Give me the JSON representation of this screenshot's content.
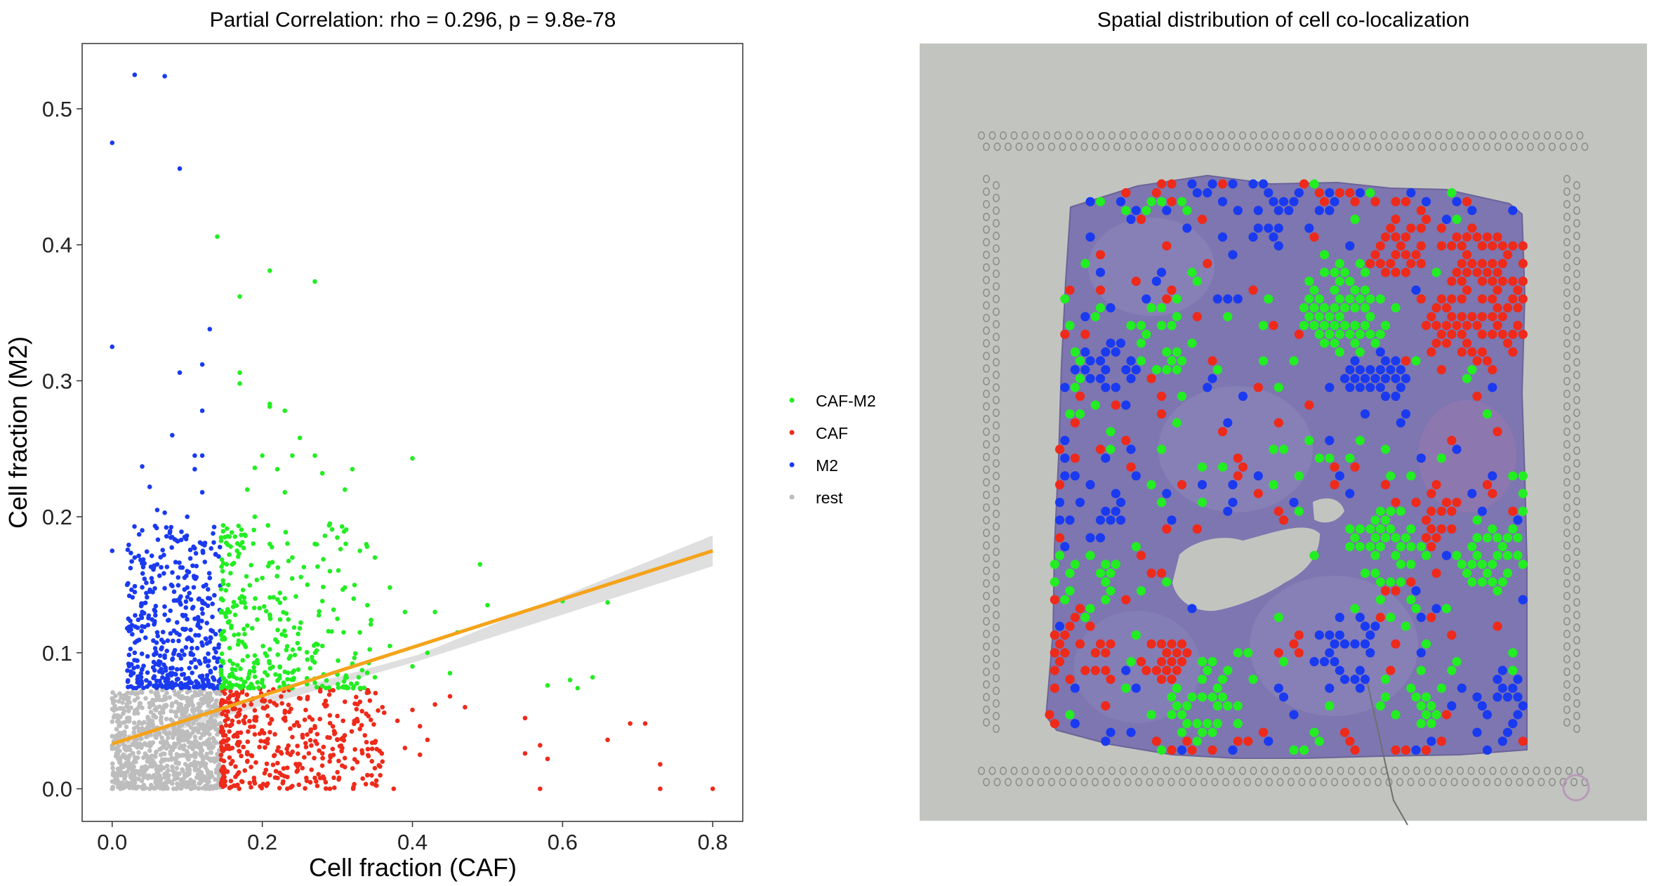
{
  "chart_data": [
    {
      "type": "scatter",
      "title": "Partial Correlation: rho = 0.296, p = 9.8e-78",
      "xlabel": "Cell fraction (CAF)",
      "ylabel": "Cell fraction (M2)",
      "xlim": [
        -0.04,
        0.84
      ],
      "ylim": [
        -0.024,
        0.548
      ],
      "x_ticks": [
        "0.0",
        "0.2",
        "0.4",
        "0.6",
        "0.8"
      ],
      "y_ticks": [
        "0.0",
        "0.1",
        "0.2",
        "0.3",
        "0.4",
        "0.5"
      ],
      "grid": false,
      "legend_position": "right",
      "legend": [
        {
          "label": "CAF-M2",
          "color": "#22ee22"
        },
        {
          "label": "CAF",
          "color": "#ee2a1a"
        },
        {
          "label": "M2",
          "color": "#1a3af0"
        },
        {
          "label": "rest",
          "color": "#bdbdbd"
        }
      ],
      "series": [
        {
          "name": "CAF-M2",
          "color": "#22ee22",
          "points": [
            [
              0.14,
              0.406
            ],
            [
              0.21,
              0.381
            ],
            [
              0.27,
              0.373
            ],
            [
              0.17,
              0.362
            ],
            [
              0.17,
              0.306
            ],
            [
              0.17,
              0.298
            ],
            [
              0.21,
              0.283
            ],
            [
              0.21,
              0.281
            ],
            [
              0.23,
              0.278
            ],
            [
              0.25,
              0.258
            ],
            [
              0.2,
              0.245
            ],
            [
              0.24,
              0.245
            ],
            [
              0.27,
              0.245
            ],
            [
              0.19,
              0.236
            ],
            [
              0.22,
              0.235
            ],
            [
              0.32,
              0.235
            ],
            [
              0.4,
              0.243
            ],
            [
              0.28,
              0.232
            ],
            [
              0.18,
              0.22
            ],
            [
              0.23,
              0.218
            ],
            [
              0.31,
              0.22
            ],
            [
              0.19,
              0.2
            ],
            [
              0.29,
              0.195
            ],
            [
              0.15,
              0.185
            ],
            [
              0.21,
              0.18
            ],
            [
              0.27,
              0.18
            ],
            [
              0.33,
              0.175
            ],
            [
              0.24,
              0.17
            ],
            [
              0.35,
              0.17
            ],
            [
              0.16,
              0.165
            ],
            [
              0.29,
              0.16
            ],
            [
              0.49,
              0.165
            ],
            [
              0.2,
              0.155
            ],
            [
              0.26,
              0.15
            ],
            [
              0.31,
              0.148
            ],
            [
              0.37,
              0.148
            ],
            [
              0.17,
              0.14
            ],
            [
              0.23,
              0.14
            ],
            [
              0.28,
              0.138
            ],
            [
              0.34,
              0.135
            ],
            [
              0.21,
              0.128
            ],
            [
              0.3,
              0.125
            ],
            [
              0.39,
              0.13
            ],
            [
              0.43,
              0.13
            ],
            [
              0.5,
              0.135
            ],
            [
              0.6,
              0.138
            ],
            [
              0.66,
              0.137
            ],
            [
              0.18,
              0.12
            ],
            [
              0.25,
              0.118
            ],
            [
              0.33,
              0.115
            ],
            [
              0.46,
              0.115
            ],
            [
              0.15,
              0.11
            ],
            [
              0.22,
              0.108
            ],
            [
              0.28,
              0.105
            ],
            [
              0.37,
              0.105
            ],
            [
              0.42,
              0.1
            ],
            [
              0.19,
              0.098
            ],
            [
              0.26,
              0.095
            ],
            [
              0.32,
              0.092
            ],
            [
              0.4,
              0.09
            ],
            [
              0.16,
              0.088
            ],
            [
              0.23,
              0.086
            ],
            [
              0.3,
              0.084
            ],
            [
              0.35,
              0.082
            ],
            [
              0.45,
              0.085
            ],
            [
              0.2,
              0.08
            ],
            [
              0.27,
              0.078
            ],
            [
              0.58,
              0.076
            ],
            [
              0.61,
              0.08
            ],
            [
              0.64,
              0.082
            ],
            [
              0.17,
              0.075
            ],
            [
              0.24,
              0.074
            ],
            [
              0.33,
              0.074
            ],
            [
              0.62,
              0.074
            ]
          ]
        },
        {
          "name": "CAF",
          "color": "#ee2a1a",
          "points": [
            [
              0.15,
              0.07
            ],
            [
              0.2,
              0.068
            ],
            [
              0.26,
              0.066
            ],
            [
              0.31,
              0.064
            ],
            [
              0.36,
              0.06
            ],
            [
              0.45,
              0.068
            ],
            [
              0.47,
              0.06
            ],
            [
              0.17,
              0.058
            ],
            [
              0.23,
              0.056
            ],
            [
              0.29,
              0.054
            ],
            [
              0.4,
              0.058
            ],
            [
              0.43,
              0.062
            ],
            [
              0.16,
              0.05
            ],
            [
              0.21,
              0.048
            ],
            [
              0.27,
              0.046
            ],
            [
              0.33,
              0.044
            ],
            [
              0.38,
              0.05
            ],
            [
              0.41,
              0.046
            ],
            [
              0.55,
              0.052
            ],
            [
              0.19,
              0.04
            ],
            [
              0.24,
              0.038
            ],
            [
              0.3,
              0.036
            ],
            [
              0.35,
              0.034
            ],
            [
              0.42,
              0.036
            ],
            [
              0.16,
              0.03
            ],
            [
              0.22,
              0.028
            ],
            [
              0.28,
              0.026
            ],
            [
              0.39,
              0.03
            ],
            [
              0.57,
              0.032
            ],
            [
              0.66,
              0.036
            ],
            [
              0.18,
              0.02
            ],
            [
              0.25,
              0.018
            ],
            [
              0.31,
              0.016
            ],
            [
              0.36,
              0.02
            ],
            [
              0.41,
              0.025
            ],
            [
              0.15,
              0.012
            ],
            [
              0.21,
              0.01
            ],
            [
              0.27,
              0.008
            ],
            [
              0.34,
              0.01
            ],
            [
              0.55,
              0.026
            ],
            [
              0.69,
              0.048
            ],
            [
              0.71,
              0.048
            ],
            [
              0.19,
              0.004
            ],
            [
              0.24,
              0.002
            ],
            [
              0.29,
              0.0
            ],
            [
              0.375,
              0.0
            ],
            [
              0.57,
              0.0
            ],
            [
              0.58,
              0.022
            ],
            [
              0.73,
              0.018
            ],
            [
              0.73,
              0.0
            ],
            [
              0.8,
              0.0
            ]
          ]
        },
        {
          "name": "M2",
          "color": "#1a3af0",
          "points": [
            [
              0.03,
              0.525
            ],
            [
              0.07,
              0.524
            ],
            [
              0.0,
              0.475
            ],
            [
              0.09,
              0.456
            ],
            [
              0.0,
              0.325
            ],
            [
              0.13,
              0.338
            ],
            [
              0.12,
              0.312
            ],
            [
              0.09,
              0.306
            ],
            [
              0.12,
              0.278
            ],
            [
              0.08,
              0.26
            ],
            [
              0.11,
              0.245
            ],
            [
              0.12,
              0.245
            ],
            [
              0.04,
              0.237
            ],
            [
              0.11,
              0.235
            ],
            [
              0.05,
              0.222
            ],
            [
              0.12,
              0.218
            ],
            [
              0.06,
              0.205
            ],
            [
              0.07,
              0.203
            ],
            [
              0.1,
              0.2
            ],
            [
              0.0,
              0.175
            ],
            [
              0.04,
              0.19
            ],
            [
              0.08,
              0.185
            ],
            [
              0.12,
              0.18
            ],
            [
              0.03,
              0.17
            ],
            [
              0.06,
              0.165
            ],
            [
              0.1,
              0.16
            ],
            [
              0.13,
              0.155
            ],
            [
              0.02,
              0.15
            ],
            [
              0.05,
              0.145
            ],
            [
              0.09,
              0.14
            ],
            [
              0.12,
              0.138
            ],
            [
              0.04,
              0.13
            ],
            [
              0.07,
              0.128
            ],
            [
              0.11,
              0.125
            ],
            [
              0.02,
              0.118
            ],
            [
              0.06,
              0.115
            ],
            [
              0.1,
              0.11
            ],
            [
              0.13,
              0.108
            ],
            [
              0.03,
              0.1
            ],
            [
              0.07,
              0.098
            ],
            [
              0.11,
              0.095
            ],
            [
              0.04,
              0.088
            ],
            [
              0.08,
              0.085
            ],
            [
              0.12,
              0.083
            ],
            [
              0.05,
              0.078
            ],
            [
              0.09,
              0.076
            ],
            [
              0.13,
              0.075
            ]
          ]
        },
        {
          "name": "rest",
          "color": "#bdbdbd",
          "points": [
            [
              0.01,
              0.07
            ],
            [
              0.03,
              0.065
            ],
            [
              0.05,
              0.06
            ],
            [
              0.07,
              0.068
            ],
            [
              0.09,
              0.062
            ],
            [
              0.11,
              0.058
            ],
            [
              0.13,
              0.066
            ],
            [
              0.02,
              0.052
            ],
            [
              0.04,
              0.048
            ],
            [
              0.06,
              0.045
            ],
            [
              0.08,
              0.05
            ],
            [
              0.1,
              0.042
            ],
            [
              0.12,
              0.046
            ],
            [
              0.14,
              0.04
            ],
            [
              0.01,
              0.036
            ],
            [
              0.03,
              0.032
            ],
            [
              0.05,
              0.028
            ],
            [
              0.07,
              0.034
            ],
            [
              0.09,
              0.03
            ],
            [
              0.11,
              0.026
            ],
            [
              0.13,
              0.022
            ],
            [
              0.02,
              0.018
            ],
            [
              0.04,
              0.014
            ],
            [
              0.06,
              0.012
            ],
            [
              0.08,
              0.016
            ],
            [
              0.1,
              0.01
            ],
            [
              0.12,
              0.008
            ],
            [
              0.14,
              0.012
            ],
            [
              0.01,
              0.004
            ],
            [
              0.03,
              0.002
            ],
            [
              0.05,
              0.0
            ],
            [
              0.07,
              0.003
            ],
            [
              0.09,
              0.001
            ],
            [
              0.11,
              0.002
            ],
            [
              0.13,
              0.0
            ],
            [
              0.0,
              0.0
            ]
          ]
        }
      ],
      "regression_line": {
        "color": "#f5a31a",
        "x": [
          0.0,
          0.8
        ],
        "y": [
          0.033,
          0.175
        ],
        "ci_color": "#d9d9d9"
      }
    },
    {
      "type": "spatial-image",
      "title": "Spatial distribution of cell co-localization"
    }
  ]
}
